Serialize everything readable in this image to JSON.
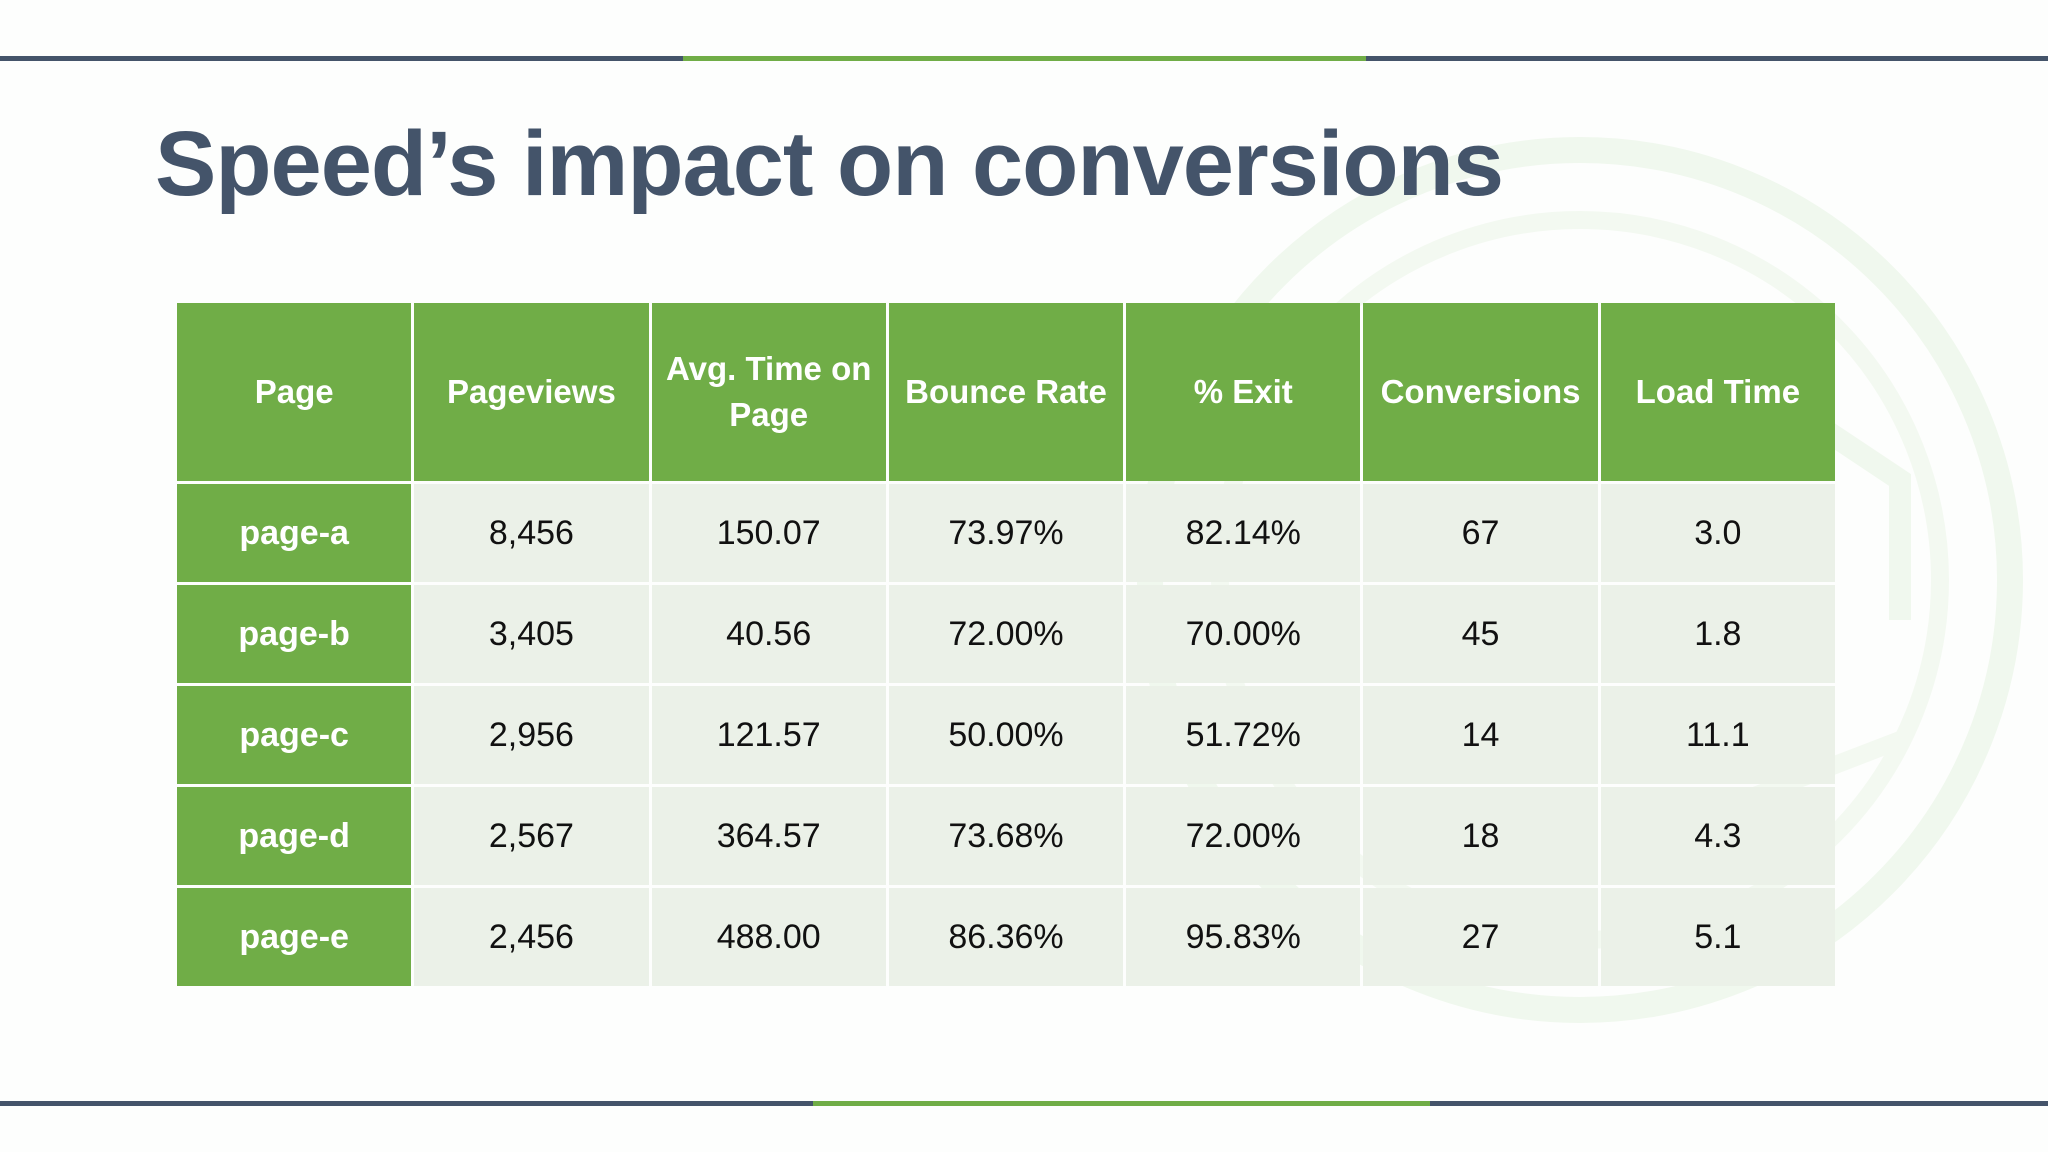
{
  "slide": {
    "title": "Speed’s impact on conversions"
  },
  "colors": {
    "accent_green": "#70ad47",
    "slate": "#44546a",
    "cell_fill": "#ebf1e8"
  },
  "table": {
    "headers": [
      "Page",
      "Pageviews",
      "Avg. Time on Page",
      "Bounce Rate",
      "% Exit",
      "Conversions",
      "Load Time"
    ],
    "rows": [
      [
        "page-a",
        "8,456",
        "150.07",
        "73.97%",
        "82.14%",
        "67",
        "3.0"
      ],
      [
        "page-b",
        "3,405",
        "40.56",
        "72.00%",
        "70.00%",
        "45",
        "1.8"
      ],
      [
        "page-c",
        "2,956",
        "121.57",
        "50.00%",
        "51.72%",
        "14",
        "11.1"
      ],
      [
        "page-d",
        "2,567",
        "364.57",
        "73.68%",
        "72.00%",
        "18",
        "4.3"
      ],
      [
        "page-e",
        "2,456",
        "488.00",
        "86.36%",
        "95.83%",
        "27",
        "5.1"
      ]
    ]
  }
}
